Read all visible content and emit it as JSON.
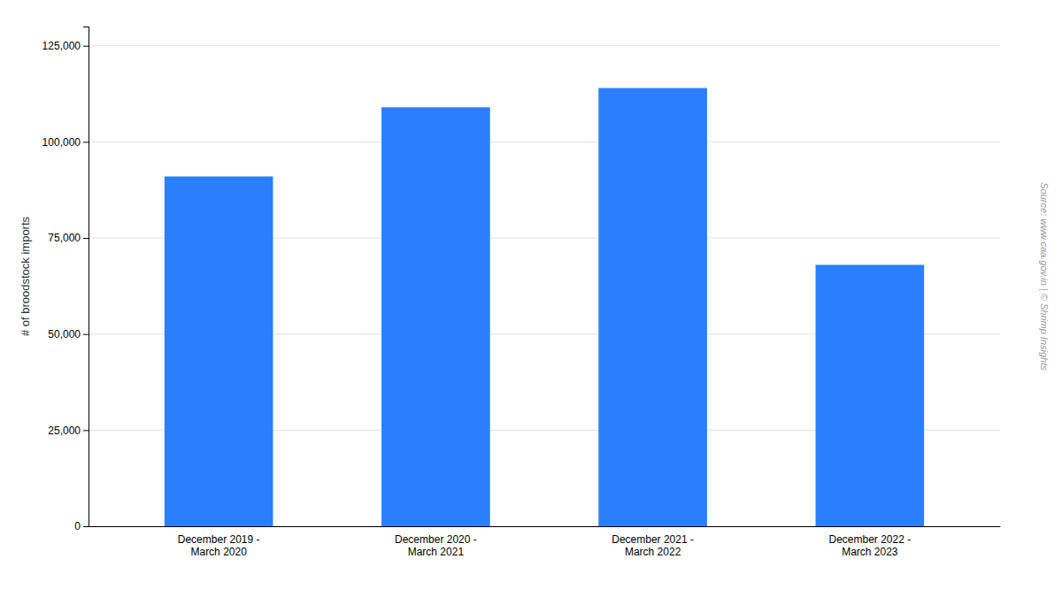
{
  "chart_data": {
    "type": "bar",
    "categories": [
      "December 2019 -\nMarch 2020",
      "December 2020 -\nMarch 2021",
      "December 2021 -\nMarch 2022",
      "December 2022 -\nMarch 2023"
    ],
    "values": [
      91000,
      109000,
      114000,
      68000
    ],
    "color": "#2B7FFF",
    "ylabel": "# of broodstock imports",
    "ylim": [
      0,
      130000
    ],
    "yticks": [
      0,
      {
        "value": 25000,
        "label": "25,000"
      },
      {
        "value": 50000,
        "label": "50,000"
      },
      {
        "value": 75000,
        "label": "75,000"
      },
      {
        "value": 100000,
        "label": "100,000"
      },
      {
        "value": 125000,
        "label": "125,000"
      }
    ],
    "grid": true,
    "annotations": [
      "Source: www.caa.gov.in | © Shrimp Insights"
    ]
  }
}
